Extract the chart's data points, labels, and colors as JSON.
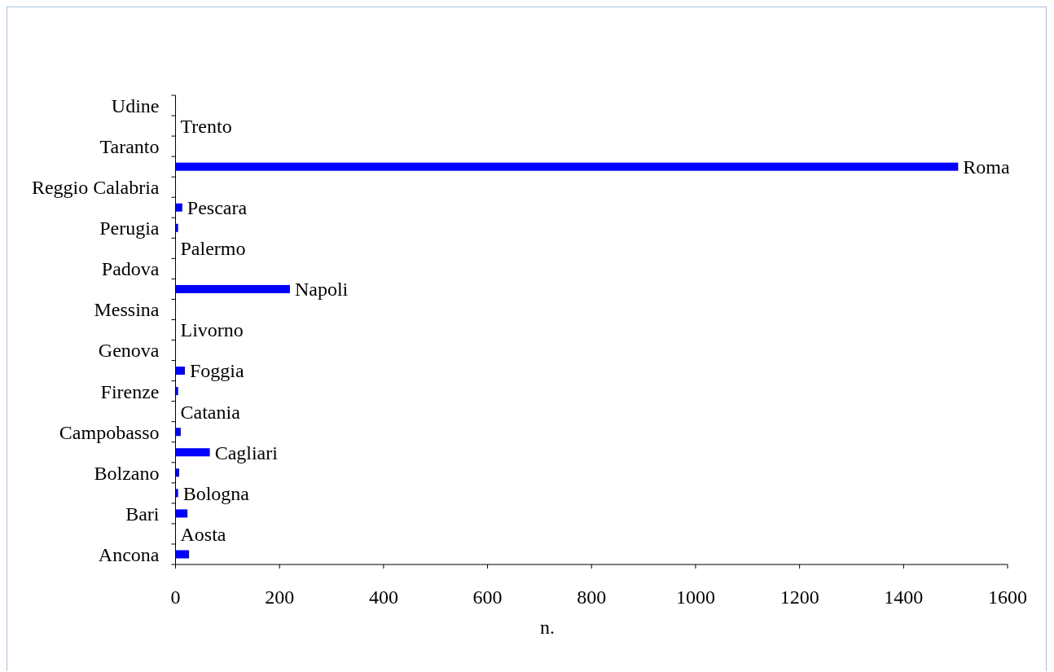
{
  "chart_data": {
    "type": "bar",
    "orientation": "horizontal",
    "xlabel": "n.",
    "categories": [
      "Udine",
      null,
      "Taranto",
      null,
      "Reggio Calabria",
      null,
      "Perugia",
      null,
      "Padova",
      null,
      "Messina",
      null,
      "Genova",
      null,
      "Firenze",
      null,
      "Campobasso",
      null,
      "Bolzano",
      null,
      "Bari",
      null,
      "Ancona"
    ],
    "values": [
      0,
      0,
      0,
      1505,
      0,
      13,
      5,
      0,
      0,
      220,
      0,
      0,
      0,
      18,
      5,
      0,
      10,
      66,
      7,
      5,
      23,
      0,
      26
    ],
    "value_labels": [
      null,
      "Trento",
      null,
      "Roma",
      null,
      "Pescara",
      null,
      "Palermo",
      null,
      "Napoli",
      null,
      "Livorno",
      null,
      "Foggia",
      null,
      "Catania",
      null,
      "Cagliari",
      null,
      "Bologna",
      null,
      "Aosta",
      null
    ],
    "color": "#0000ff",
    "xlim": [
      0,
      1600
    ],
    "xticks": [
      0,
      200,
      400,
      600,
      800,
      1000,
      1200,
      1400,
      1600
    ]
  }
}
